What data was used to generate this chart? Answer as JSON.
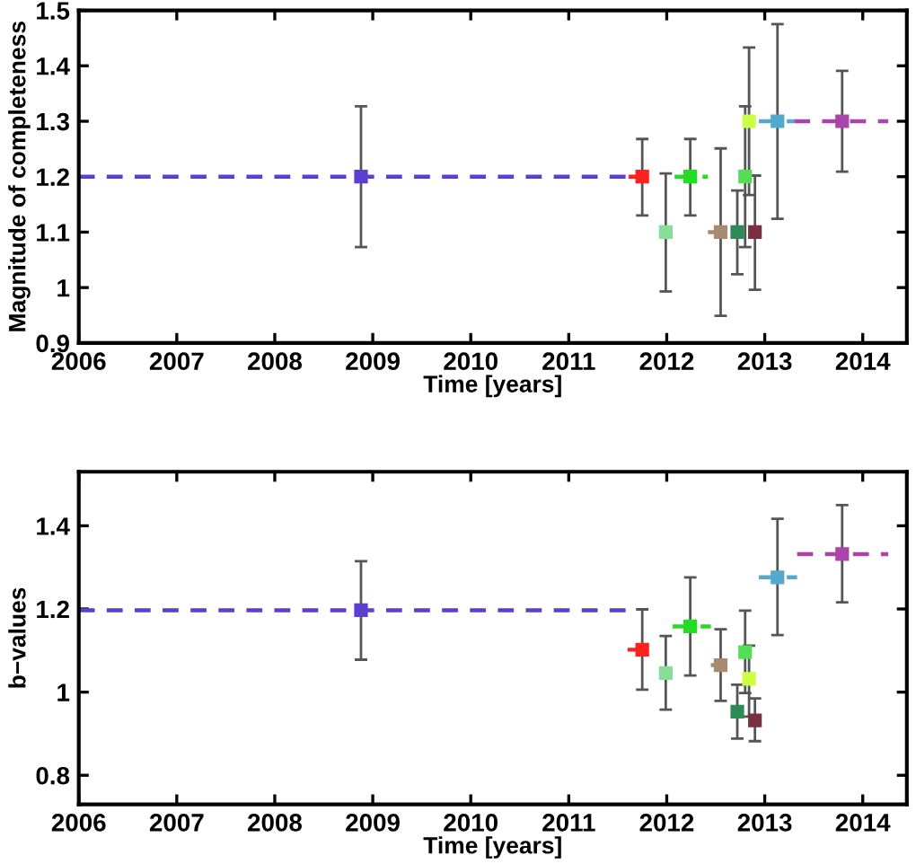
{
  "chart_data": [
    {
      "type": "scatter",
      "xlabel": "Time [years]",
      "ylabel": "Magnitude of completeness",
      "xlim": [
        2006,
        2014.45
      ],
      "ylim": [
        0.9,
        1.5
      ],
      "xticks": [
        2006,
        2007,
        2008,
        2009,
        2010,
        2011,
        2012,
        2013,
        2014
      ],
      "yticks": [
        0.9,
        1,
        1.1,
        1.2,
        1.3,
        1.4,
        1.5
      ],
      "grid": false,
      "legend": false,
      "series": [
        {
          "type": "line",
          "line_style": "dashed",
          "marker": "none",
          "color": "#5b3fd0",
          "x": [
            2006,
            2011.62
          ],
          "values": [
            1.2,
            1.2
          ]
        },
        {
          "type": "line",
          "line_style": "dashed",
          "marker": "none",
          "color": "#ff2020",
          "x": [
            2011.61,
            2011.83
          ],
          "values": [
            1.2,
            1.2
          ]
        },
        {
          "type": "line",
          "line_style": "dashed",
          "marker": "none",
          "color": "#22dd22",
          "x": [
            2012.08,
            2012.42
          ],
          "values": [
            1.2,
            1.2
          ]
        },
        {
          "type": "line",
          "line_style": "dashed",
          "marker": "none",
          "color": "#a88a70",
          "x": [
            2012.42,
            2012.66
          ],
          "values": [
            1.1,
            1.1
          ]
        },
        {
          "type": "line",
          "line_style": "dashed",
          "marker": "none",
          "color": "#55aacc",
          "x": [
            2012.94,
            2013.3
          ],
          "values": [
            1.3,
            1.3
          ]
        },
        {
          "type": "line",
          "line_style": "dashed",
          "marker": "none",
          "color": "#aa44aa",
          "x": [
            2013.3,
            2014.26
          ],
          "values": [
            1.3,
            1.3
          ]
        },
        {
          "marker": "square",
          "x": [
            2008.88,
            2011.75,
            2011.99,
            2012.24,
            2012.55,
            2012.72,
            2012.8,
            2012.84,
            2012.9,
            2013.13,
            2013.79
          ],
          "values": [
            1.2,
            1.2,
            1.1,
            1.2,
            1.1,
            1.1,
            1.2,
            1.3,
            1.1,
            1.3,
            1.3
          ],
          "errors": [
            [
              1.073,
              1.327
            ],
            [
              1.13,
              1.268
            ],
            [
              0.993,
              1.206
            ],
            [
              1.13,
              1.268
            ],
            [
              0.949,
              1.251
            ],
            [
              1.024,
              1.175
            ],
            [
              1.073,
              1.327
            ],
            [
              1.167,
              1.433
            ],
            [
              0.996,
              1.202
            ],
            [
              1.124,
              1.475
            ],
            [
              1.209,
              1.391
            ]
          ],
          "colors": [
            "#5b3fd0",
            "#ff2020",
            "#88dd99",
            "#22dd22",
            "#a88a70",
            "#2e8b57",
            "#55dd55",
            "#ccff44",
            "#7a3040",
            "#55aacc",
            "#aa44aa"
          ]
        }
      ]
    },
    {
      "type": "scatter",
      "xlabel": "Time [years]",
      "ylabel": "b−values",
      "xlim": [
        2006,
        2014.45
      ],
      "ylim": [
        0.73,
        1.53
      ],
      "xticks": [
        2006,
        2007,
        2008,
        2009,
        2010,
        2011,
        2012,
        2013,
        2014
      ],
      "yticks": [
        0.8,
        1,
        1.2,
        1.4
      ],
      "grid": false,
      "legend": false,
      "series": [
        {
          "type": "line",
          "line_style": "dashed",
          "marker": "none",
          "color": "#5b3fd0",
          "x": [
            2006,
            2011.59
          ],
          "values": [
            1.197,
            1.197
          ]
        },
        {
          "type": "line",
          "line_style": "dashed",
          "marker": "none",
          "color": "#ff2020",
          "x": [
            2011.6,
            2011.86
          ],
          "values": [
            1.102,
            1.102
          ]
        },
        {
          "type": "line",
          "line_style": "dashed",
          "marker": "none",
          "color": "#22dd22",
          "x": [
            2012.06,
            2012.45
          ],
          "values": [
            1.158,
            1.158
          ]
        },
        {
          "type": "line",
          "line_style": "dashed",
          "marker": "none",
          "color": "#a88a70",
          "x": [
            2012.45,
            2012.66
          ],
          "values": [
            1.065,
            1.065
          ]
        },
        {
          "type": "line",
          "line_style": "dashed",
          "marker": "none",
          "color": "#55aacc",
          "x": [
            2012.94,
            2013.33
          ],
          "values": [
            1.276,
            1.276
          ]
        },
        {
          "type": "line",
          "line_style": "dashed",
          "marker": "none",
          "color": "#aa44aa",
          "x": [
            2013.33,
            2014.26
          ],
          "values": [
            1.332,
            1.332
          ]
        },
        {
          "marker": "square",
          "x": [
            2008.88,
            2011.75,
            2011.99,
            2012.24,
            2012.55,
            2012.72,
            2012.8,
            2012.84,
            2012.9,
            2013.13,
            2013.79
          ],
          "values": [
            1.197,
            1.102,
            1.046,
            1.158,
            1.065,
            0.953,
            1.096,
            1.032,
            0.932,
            1.276,
            1.332
          ],
          "errors": [
            [
              1.078,
              1.315
            ],
            [
              1.006,
              1.199
            ],
            [
              0.958,
              1.135
            ],
            [
              1.04,
              1.276
            ],
            [
              0.979,
              1.151
            ],
            [
              0.888,
              1.018
            ],
            [
              0.998,
              1.196
            ],
            [
              0.941,
              1.112
            ],
            [
              0.882,
              0.985
            ],
            [
              1.137,
              1.417
            ],
            [
              1.216,
              1.45
            ]
          ],
          "colors": [
            "#5b3fd0",
            "#ff2020",
            "#88dd99",
            "#22dd22",
            "#a88a70",
            "#2e8b57",
            "#55dd55",
            "#ccff44",
            "#7a3040",
            "#55aacc",
            "#aa44aa"
          ]
        }
      ]
    }
  ]
}
